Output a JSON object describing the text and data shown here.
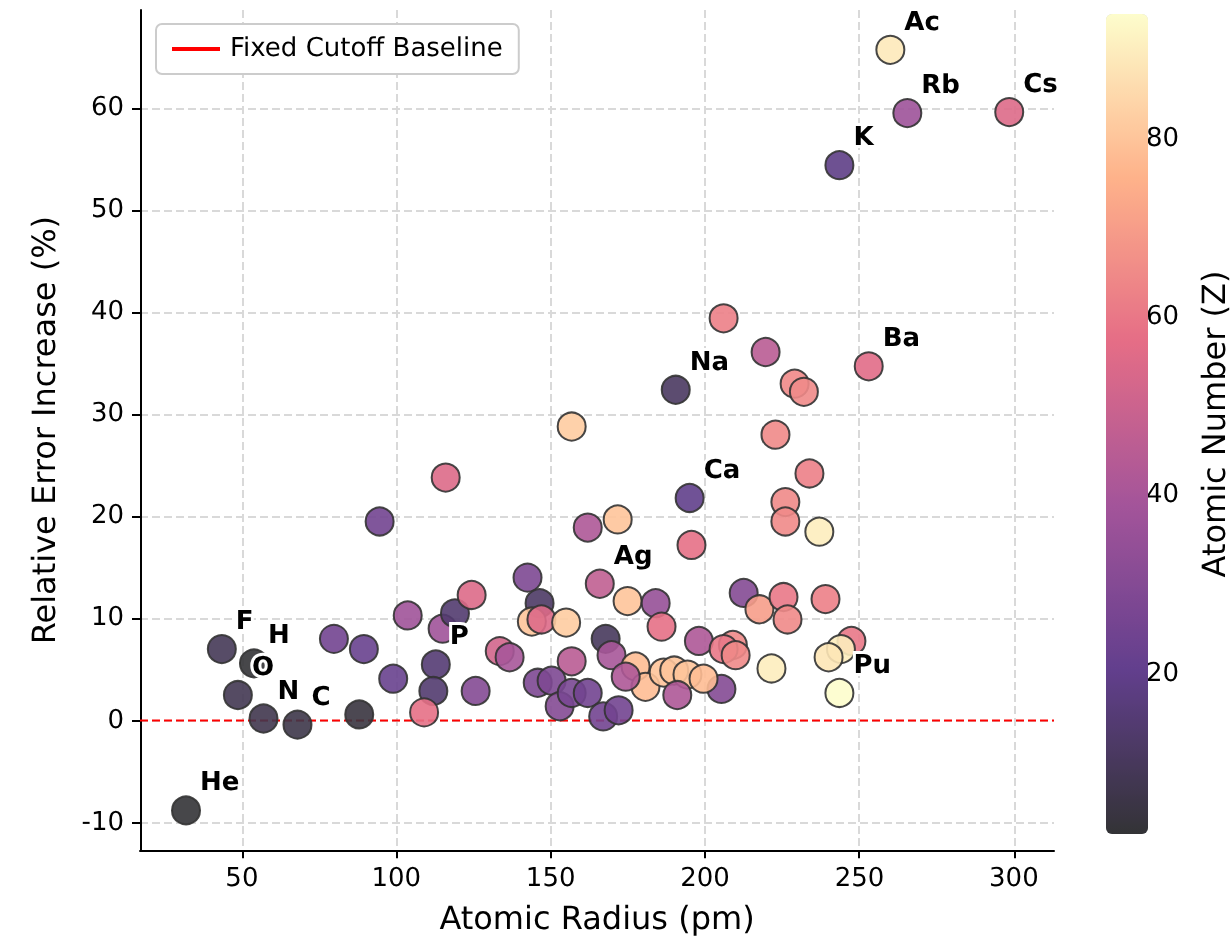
{
  "chart_data": {
    "type": "scatter",
    "xlabel": "Atomic Radius (pm)",
    "ylabel": "Relative Error Increase (%)",
    "clabel": "Atomic Number (Z)",
    "x": [
      31.9,
      53.9,
      43.5,
      48.7,
      57,
      68,
      112.8,
      165.9,
      190.5,
      195,
      243.5,
      265.5,
      298.5,
      260,
      253,
      243.5,
      94.6,
      79.8,
      89.5,
      88,
      99,
      103.7,
      115,
      112,
      109,
      119,
      124.4,
      142.5,
      146.4,
      143.9,
      147,
      155,
      156.8,
      133.5,
      136.7,
      125.7,
      145.8,
      150.3,
      152.9,
      156.8,
      162,
      116,
      156.8,
      162,
      171.7,
      195.6,
      174.9,
      184,
      185.9,
      167.8,
      169.7,
      177.5,
      180.7,
      174.3,
      186.6,
      190,
      194.3,
      191,
      198,
      167,
      172,
      206,
      219.6,
      229,
      232,
      222.8,
      233.8,
      226,
      226,
      237,
      212.5,
      217.6,
      225.4,
      226.7,
      239,
      247.4,
      244,
      240,
      221.5,
      209,
      206,
      209.9,
      205.3,
      199.5
    ],
    "values": [
      -8.8,
      5.6,
      7.0,
      2.5,
      0.2,
      -0.4,
      5.5,
      13.4,
      32.4,
      21.8,
      54.4,
      59.5,
      59.6,
      65.7,
      34.7,
      2.7,
      19.5,
      8.0,
      7.0,
      0.6,
      4.1,
      10.3,
      9.0,
      2.9,
      0.8,
      10.5,
      12.3,
      14.0,
      11.5,
      9.7,
      9.9,
      9.6,
      5.8,
      6.8,
      6.2,
      2.9,
      3.7,
      3.9,
      1.4,
      2.7,
      2.7,
      23.8,
      28.8,
      18.9,
      19.7,
      17.2,
      11.7,
      11.5,
      9.2,
      8.0,
      6.4,
      5.3,
      3.3,
      4.3,
      4.7,
      4.9,
      4.5,
      2.5,
      7.8,
      0.4,
      1.0,
      39.4,
      36.1,
      33,
      32.2,
      28.0,
      24.2,
      21.4,
      19.5,
      18.5,
      12.5,
      10.9,
      12.1,
      9.9,
      11.9,
      7.8,
      7.0,
      6.2,
      5.1,
      7.4,
      7.0,
      6.4,
      3.1,
      4.1
    ],
    "cvalues": [
      2,
      1,
      9,
      8,
      7,
      6,
      15,
      47,
      11,
      20,
      19,
      37,
      55,
      89,
      56,
      94,
      25,
      25,
      22,
      4,
      22,
      38,
      38,
      14,
      58,
      14,
      55,
      28,
      12,
      80,
      55,
      82,
      45,
      52,
      40,
      30,
      28,
      28,
      30,
      27,
      25,
      55,
      82,
      42,
      80,
      58,
      80,
      35,
      58,
      10,
      40,
      78,
      78,
      42,
      80,
      80,
      80,
      42,
      42,
      25,
      25,
      62,
      45,
      65,
      65,
      65,
      62,
      65,
      65,
      90,
      30,
      70,
      60,
      65,
      62,
      60,
      90,
      88,
      90,
      65,
      60,
      65,
      30,
      78
    ],
    "clim": [
      2,
      94
    ],
    "cticks": [
      20,
      40,
      60,
      80
    ],
    "xlim": [
      17,
      313
    ],
    "xticks": [
      50,
      100,
      150,
      200,
      250,
      300
    ],
    "ylim": [
      -12.7,
      69.6
    ],
    "yticks": [
      -10,
      0,
      10,
      20,
      30,
      40,
      50,
      60
    ],
    "grid": true,
    "legend": "top left",
    "marker": "circle",
    "ref_lines": [
      {
        "axis": "y",
        "value": 0,
        "label": "Fixed Cutoff Baseline",
        "color": "#ff0000",
        "line_style": "dashed"
      }
    ],
    "annotations": [
      {
        "text": "He",
        "x": 31.9,
        "y": -8.8
      },
      {
        "text": "H",
        "x": 53.9,
        "y": 5.6
      },
      {
        "text": "F",
        "x": 43.5,
        "y": 7.0
      },
      {
        "text": "O",
        "x": 48.7,
        "y": 2.5
      },
      {
        "text": "N",
        "x": 57,
        "y": 0.2
      },
      {
        "text": "C",
        "x": 68,
        "y": -0.4
      },
      {
        "text": "P",
        "x": 112.8,
        "y": 5.5
      },
      {
        "text": "Ag",
        "x": 165.9,
        "y": 13.4
      },
      {
        "text": "Na",
        "x": 190.5,
        "y": 32.4
      },
      {
        "text": "Ca",
        "x": 195,
        "y": 21.8
      },
      {
        "text": "K",
        "x": 243.5,
        "y": 54.4
      },
      {
        "text": "Rb",
        "x": 265.5,
        "y": 59.5
      },
      {
        "text": "Cs",
        "x": 298.5,
        "y": 59.6
      },
      {
        "text": "Ac",
        "x": 260,
        "y": 65.7
      },
      {
        "text": "Ba",
        "x": 253,
        "y": 34.7
      },
      {
        "text": "Pu",
        "x": 243.5,
        "y": 2.7
      }
    ]
  }
}
